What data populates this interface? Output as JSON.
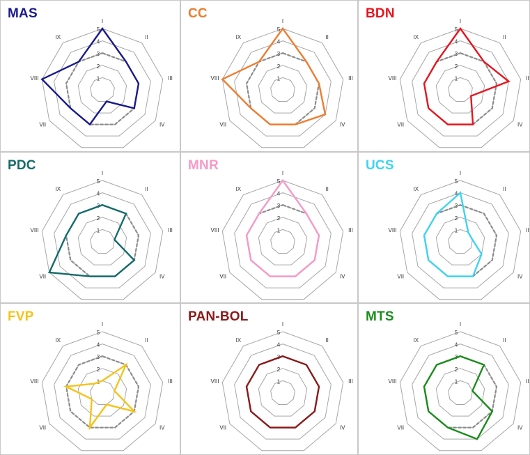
{
  "axes": [
    "I",
    "II",
    "III",
    "IV",
    "V",
    "VI",
    "VII",
    "VIII",
    "IX"
  ],
  "ring_labels": [
    "1",
    "2",
    "3",
    "4",
    "5"
  ],
  "grid_color": "#a6a6a6",
  "reference_color": "#8c8c8c",
  "chart_data": [
    {
      "type": "radar",
      "title": "MAS",
      "color": "#1a1a8c",
      "rmax": 5,
      "series": [
        {
          "name": "MAS",
          "values": [
            5,
            3,
            3,
            3,
            1,
            3,
            3,
            5,
            3
          ]
        }
      ],
      "reference": [
        3,
        3,
        3,
        3,
        3,
        3,
        3,
        3,
        3
      ]
    },
    {
      "type": "radar",
      "title": "CC",
      "color": "#ed7d31",
      "rmax": 5,
      "series": [
        {
          "name": "CC",
          "values": [
            5,
            3,
            3,
            4,
            3,
            3,
            3,
            5,
            3
          ]
        }
      ],
      "reference": [
        3,
        3,
        3,
        3,
        3,
        3,
        3,
        3,
        3
      ]
    },
    {
      "type": "radar",
      "title": "BDN",
      "color": "#e8141e",
      "rmax": 5,
      "series": [
        {
          "name": "BDN",
          "values": [
            5,
            3,
            4,
            1,
            3,
            3,
            3,
            3,
            3
          ]
        }
      ],
      "reference": [
        3,
        3,
        3,
        3,
        3,
        3,
        3,
        3,
        3
      ]
    },
    {
      "type": "radar",
      "title": "PDC",
      "color": "#136b6b",
      "rmax": 5,
      "series": [
        {
          "name": "PDC",
          "values": [
            3,
            3,
            1,
            3,
            3,
            3,
            5,
            3,
            3
          ]
        }
      ],
      "reference": [
        3,
        3,
        3,
        3,
        3,
        3,
        3,
        3,
        3
      ]
    },
    {
      "type": "radar",
      "title": "MNR",
      "color": "#f59ac8",
      "rmax": 5,
      "series": [
        {
          "name": "MNR",
          "values": [
            5,
            3,
            3,
            3,
            3,
            3,
            3,
            3,
            3
          ]
        }
      ],
      "reference": [
        3,
        3,
        3,
        3,
        3,
        3,
        3,
        3,
        3
      ]
    },
    {
      "type": "radar",
      "title": "UCS",
      "color": "#3fd3f2",
      "rmax": 5,
      "series": [
        {
          "name": "UCS",
          "values": [
            4,
            1,
            1,
            2,
            3,
            3,
            3,
            3,
            3
          ]
        }
      ],
      "reference": [
        3,
        3,
        3,
        3,
        3,
        3,
        3,
        3,
        3
      ]
    },
    {
      "type": "radar",
      "title": "FVP",
      "color": "#f5c318",
      "rmax": 5,
      "series": [
        {
          "name": "FVP",
          "values": [
            1,
            3,
            1,
            3,
            1,
            3,
            1,
            3,
            1
          ]
        }
      ],
      "reference": [
        3,
        3,
        3,
        3,
        3,
        3,
        3,
        3,
        3
      ]
    },
    {
      "type": "radar",
      "title": "PAN-BOL",
      "color": "#8b1a1a",
      "rmax": 5,
      "series": [
        {
          "name": "PAN-BOL",
          "values": [
            3,
            3,
            3,
            3,
            3,
            3,
            3,
            3,
            3
          ]
        }
      ],
      "reference": [
        3,
        3,
        3,
        3,
        3,
        3,
        3,
        3,
        3
      ]
    },
    {
      "type": "radar",
      "title": "MTS",
      "color": "#1a8c1a",
      "rmax": 5,
      "series": [
        {
          "name": "MTS",
          "values": [
            3,
            3,
            1,
            3,
            4,
            3,
            3,
            3,
            3
          ]
        }
      ],
      "reference": [
        3,
        3,
        3,
        3,
        3,
        3,
        3,
        3,
        3
      ]
    }
  ]
}
